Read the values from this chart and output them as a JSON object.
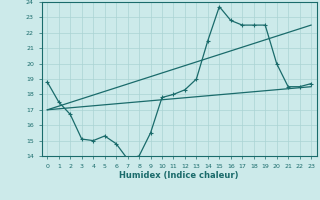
{
  "xlabel": "Humidex (Indice chaleur)",
  "ylabel": "",
  "bg_color": "#cceaea",
  "line_color": "#1a6b6b",
  "grid_color": "#aad4d4",
  "xlim": [
    -0.5,
    23.5
  ],
  "ylim": [
    14,
    24
  ],
  "xticks": [
    0,
    1,
    2,
    3,
    4,
    5,
    6,
    7,
    8,
    9,
    10,
    11,
    12,
    13,
    14,
    15,
    16,
    17,
    18,
    19,
    20,
    21,
    22,
    23
  ],
  "yticks": [
    14,
    15,
    16,
    17,
    18,
    19,
    20,
    21,
    22,
    23,
    24
  ],
  "line1_x": [
    0,
    1,
    2,
    3,
    4,
    5,
    6,
    7,
    8,
    9,
    10,
    11,
    12,
    13,
    14,
    15,
    16,
    17,
    18,
    19,
    20,
    21,
    22,
    23
  ],
  "line1_y": [
    18.8,
    17.5,
    16.7,
    15.1,
    15.0,
    15.3,
    14.8,
    13.8,
    14.0,
    15.5,
    17.8,
    18.0,
    18.3,
    19.0,
    21.5,
    23.7,
    22.8,
    22.5,
    22.5,
    22.5,
    20.0,
    18.5,
    18.5,
    18.7
  ],
  "line2_x": [
    0,
    23
  ],
  "line2_y": [
    17.0,
    22.5
  ],
  "line3_x": [
    0,
    23
  ],
  "line3_y": [
    17.0,
    18.5
  ]
}
